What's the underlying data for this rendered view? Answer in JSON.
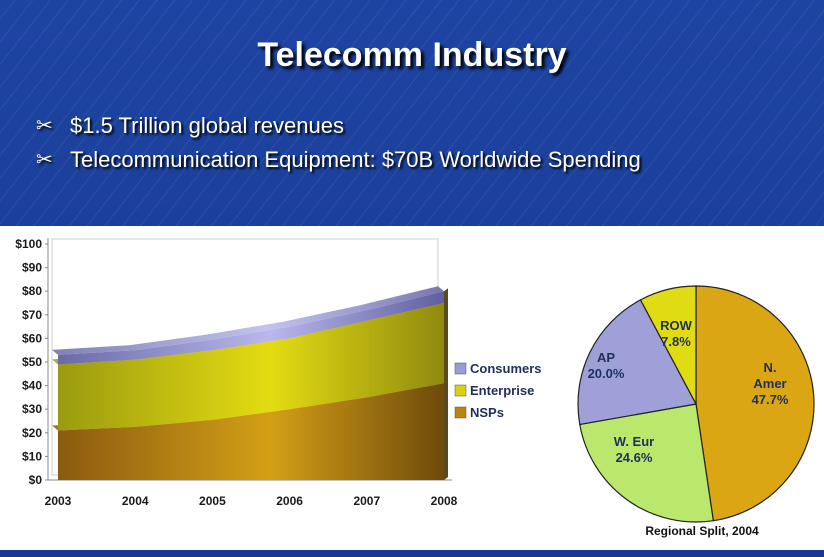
{
  "slide": {
    "title": "Telecomm Industry",
    "bullets": [
      {
        "glyph": "✂",
        "text": "$1.5 Trillion global revenues"
      },
      {
        "glyph": "✂",
        "text": "Telecommunication Equipment: $70B Worldwide Spending"
      }
    ]
  },
  "colors": {
    "background": "#1b3f9a",
    "consumers": "#9a9ad6",
    "enterprise": "#d8d20a",
    "nsps": "#b8860b",
    "n_amer": "#dba613",
    "w_eur": "#b9e86c",
    "ap": "#a0a0d8",
    "row": "#e0dc14"
  },
  "chart_data": [
    {
      "type": "area",
      "x": [
        "2003",
        "2004",
        "2005",
        "2006",
        "2007",
        "2008"
      ],
      "ylim": [
        0,
        100
      ],
      "yticks": [
        "$0",
        "$10",
        "$20",
        "$30",
        "$40",
        "$50",
        "$60",
        "$70",
        "$80",
        "$90",
        "$100"
      ],
      "stacked": true,
      "series": [
        {
          "name": "NSPs",
          "values": [
            21,
            22.5,
            25.5,
            30,
            35,
            41
          ]
        },
        {
          "name": "Enterprise",
          "values": [
            28,
            28.5,
            29.5,
            30,
            32.5,
            34
          ]
        },
        {
          "name": "Consumers",
          "values": [
            4,
            4,
            4.5,
            5,
            4.5,
            5
          ]
        }
      ],
      "legend_order": [
        "Consumers",
        "Enterprise",
        "NSPs"
      ],
      "legend_placement": "right",
      "grid": false
    },
    {
      "type": "pie",
      "caption": "Regional Split, 2004",
      "slices": [
        {
          "name": "N. Amer",
          "label_lines": [
            "N.",
            "Amer",
            "47.7%"
          ],
          "value": 47.7
        },
        {
          "name": "W. Eur",
          "label_lines": [
            "W. Eur",
            "24.6%"
          ],
          "value": 24.6
        },
        {
          "name": "AP",
          "label_lines": [
            "AP",
            "20.0%"
          ],
          "value": 20.0
        },
        {
          "name": "ROW",
          "label_lines": [
            "ROW",
            "7.8%"
          ],
          "value": 7.8
        }
      ]
    }
  ]
}
